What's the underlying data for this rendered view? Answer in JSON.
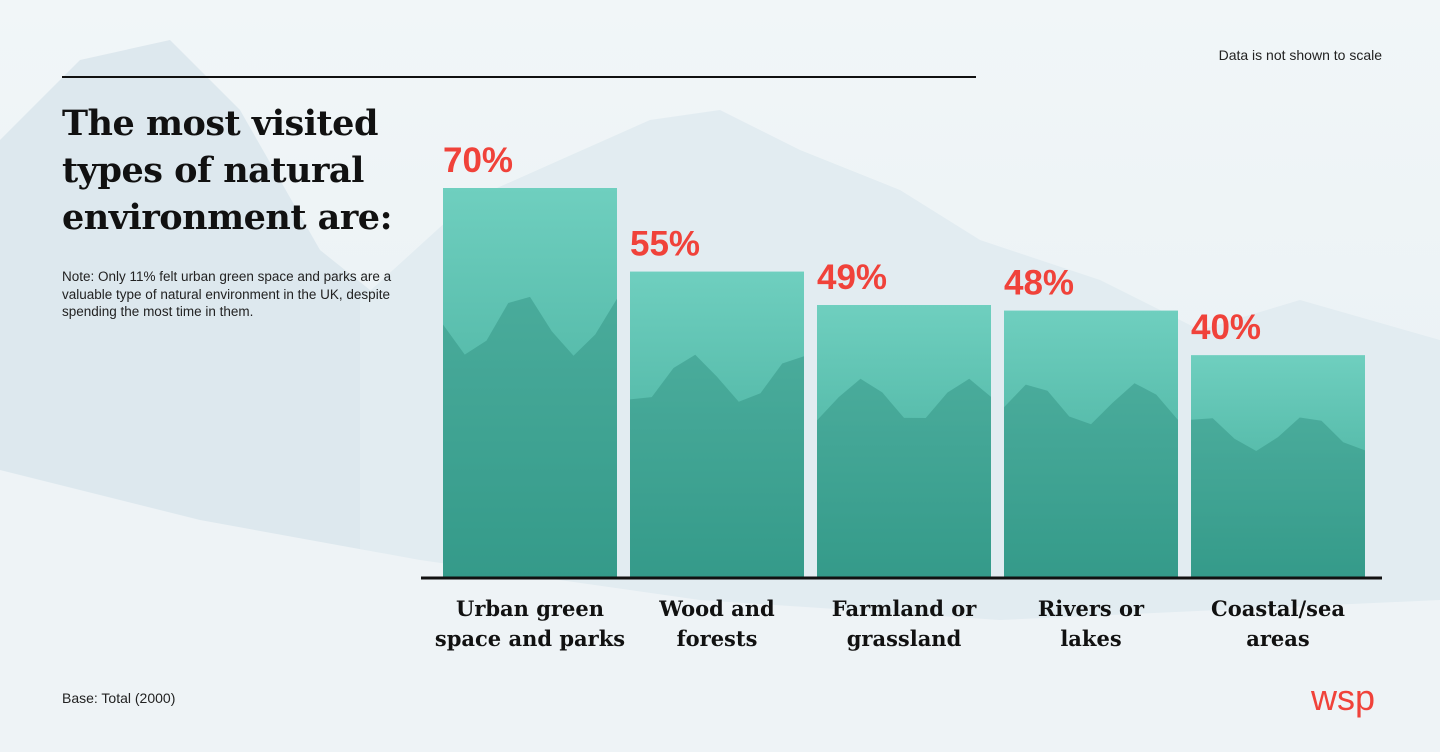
{
  "scale_note": "Data is not shown to scale",
  "title_lines": [
    "The most visited",
    "types of natural",
    "environment are:"
  ],
  "note": "Note: Only 11% felt urban green space and parks are a valuable type of natural environment in the UK, despite spending the most time in them.",
  "base": "Base: Total (2000)",
  "brand": "wsp",
  "colors": {
    "accent": "#f0423a",
    "bar": "#6fcfbf",
    "bar_dark": "#3aa593",
    "background": "#e9f1f5"
  },
  "chart_data": {
    "type": "bar",
    "categories": [
      [
        "Urban green",
        "space and parks"
      ],
      [
        "Wood and",
        "forests"
      ],
      [
        "Farmland or",
        "grassland"
      ],
      [
        "Rivers or",
        "lakes"
      ],
      [
        "Coastal/sea",
        "areas"
      ]
    ],
    "values": [
      70,
      55,
      49,
      48,
      40
    ],
    "labels": [
      "70%",
      "55%",
      "49%",
      "48%",
      "40%"
    ],
    "bar_images": [
      "urban-park-photo",
      "forest-photo",
      "farmland-photo",
      "river-lake-photo",
      "coastal-lighthouse-photo"
    ],
    "ylim": [
      0,
      70
    ]
  }
}
